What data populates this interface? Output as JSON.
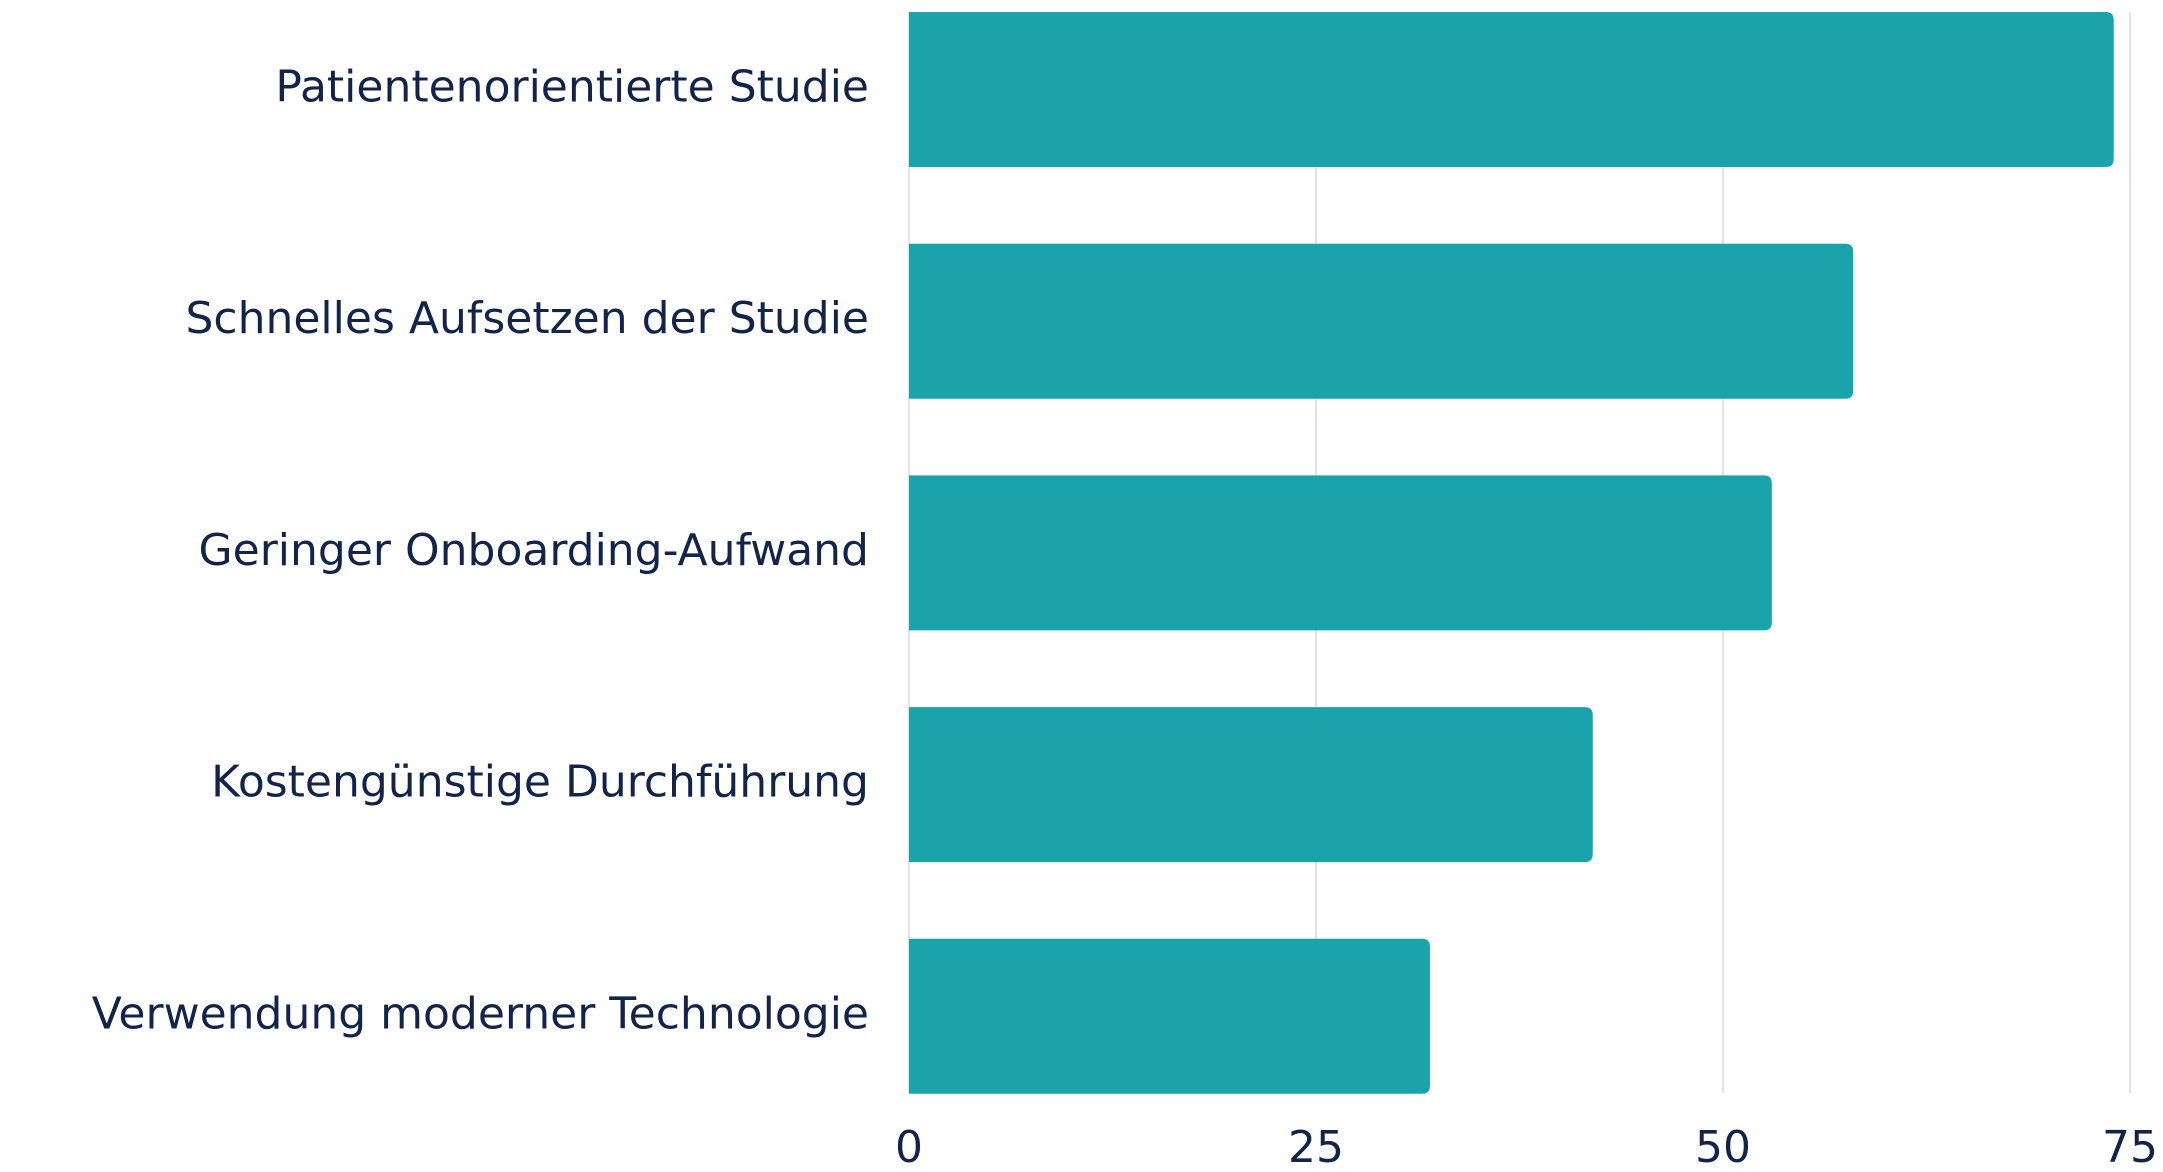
{
  "chart_data": {
    "type": "bar",
    "orientation": "horizontal",
    "categories": [
      "Patientenorientierte Studie",
      "Schnelles Aufsetzen der Studie",
      "Geringer Onboarding-Aufwand",
      "Kostengünstige Durchführung",
      "Verwendung moderner Technologie"
    ],
    "values": [
      74,
      58,
      53,
      42,
      32
    ],
    "color": "#1aa3ab",
    "xlim": [
      0,
      75
    ],
    "xticks": [
      0,
      25,
      50,
      75
    ],
    "grid": true
  }
}
